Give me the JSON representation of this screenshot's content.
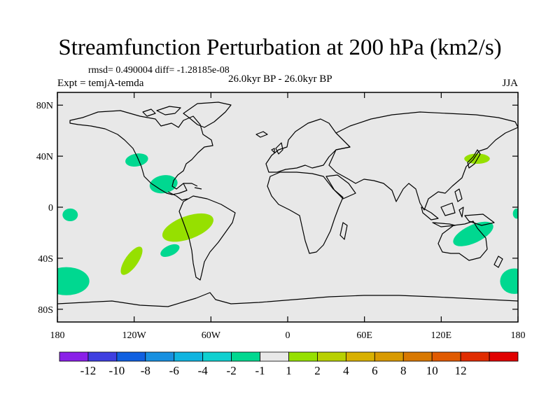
{
  "title": "Streamfunction Perturbation at 200 hPa (km2/s)",
  "stats": "rmsd= 0.490004 diff= -1.28185e-08",
  "experiment": "Expt = temjA-temda",
  "period": "26.0kyr BP - 26.0kyr BP",
  "season": "JJA",
  "map": {
    "background": "#e8e8e8",
    "lon_range": [
      -180,
      180
    ],
    "lat_range": [
      -90,
      90
    ],
    "lat_ticks": [
      {
        "value": 80,
        "label": "80N"
      },
      {
        "value": 40,
        "label": "40N"
      },
      {
        "value": 0,
        "label": "0"
      },
      {
        "value": -40,
        "label": "40S"
      },
      {
        "value": -80,
        "label": "80S"
      }
    ],
    "lon_ticks": [
      {
        "value": -180,
        "label": "180"
      },
      {
        "value": -120,
        "label": "120W"
      },
      {
        "value": -60,
        "label": "60W"
      },
      {
        "value": 0,
        "label": "0"
      },
      {
        "value": 60,
        "label": "60E"
      },
      {
        "value": 120,
        "label": "120E"
      },
      {
        "value": 180,
        "label": "180"
      }
    ],
    "anomalies": [
      {
        "lon": -118,
        "lat": 37,
        "rlon": 9,
        "rlat": 5,
        "rot": -10,
        "color": "#00d890"
      },
      {
        "lon": -97,
        "lat": 18,
        "rlon": 11,
        "rlat": 7,
        "rot": -10,
        "color": "#00d890"
      },
      {
        "lon": -170,
        "lat": -6,
        "rlon": 6,
        "rlat": 5,
        "rot": 0,
        "color": "#00d890"
      },
      {
        "lon": -78,
        "lat": -16,
        "rlon": 21,
        "rlat": 9,
        "rot": -20,
        "color": "#96e000"
      },
      {
        "lon": -92,
        "lat": -34,
        "rlon": 8,
        "rlat": 4,
        "rot": -25,
        "color": "#00d890"
      },
      {
        "lon": -122,
        "lat": -42,
        "rlon": 13,
        "rlat": 5,
        "rot": -55,
        "color": "#96e000"
      },
      {
        "lon": -173,
        "lat": -58,
        "rlon": 18,
        "rlat": 11,
        "rot": 0,
        "color": "#00d890"
      },
      {
        "lon": 148,
        "lat": 38,
        "rlon": 10,
        "rlat": 4,
        "rot": 0,
        "color": "#96e000"
      },
      {
        "lon": 145,
        "lat": -21,
        "rlon": 17,
        "rlat": 7,
        "rot": -25,
        "color": "#00d890"
      },
      {
        "lon": 177,
        "lat": -58,
        "rlon": 11,
        "rlat": 10,
        "rot": 0,
        "color": "#00d890"
      },
      {
        "lon": 179,
        "lat": -5,
        "rlon": 3,
        "rlat": 4,
        "rot": 0,
        "color": "#00d890"
      }
    ]
  },
  "colorbar": {
    "colors": [
      "#8a20e8",
      "#3f3fe0",
      "#1060e0",
      "#1890e0",
      "#10b4e0",
      "#10d0d0",
      "#00d890",
      "#e8e8e8",
      "#96e000",
      "#b8d000",
      "#d8b000",
      "#d89a00",
      "#d87800",
      "#e05a00",
      "#e02c00",
      "#e00000"
    ],
    "labels": [
      "-12",
      "-10",
      "-8",
      "-6",
      "-4",
      "-2",
      "-1",
      "1",
      "2",
      "4",
      "6",
      "8",
      "10",
      "12"
    ]
  }
}
